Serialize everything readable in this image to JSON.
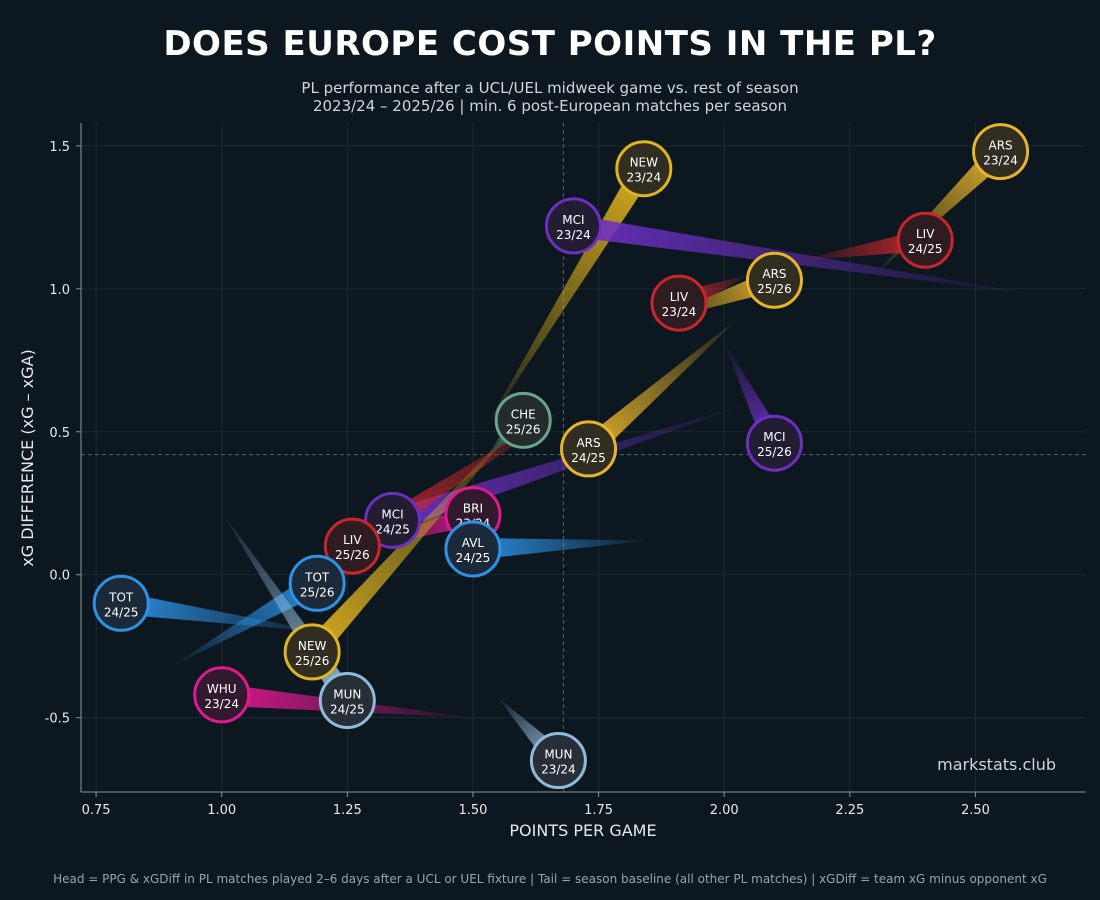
{
  "title": "DOES EUROPE COST POINTS IN THE PL?",
  "subtitle_line1": "PL performance after a UCL/UEL midweek game vs. rest of season",
  "subtitle_line2": "2023/24 – 2025/26 | min. 6 post-European matches per season",
  "footnote": "Head = PPG & xGDiff in PL matches played 2–6 days after a UCL or UEL fixture  |  Tail = season baseline (all other PL matches)  |  xGDiff = team xG minus opponent xG",
  "watermark": "markstats.club",
  "chart_data": {
    "type": "scatter",
    "xlabel": "POINTS PER GAME",
    "ylabel": "xG DIFFERENCE (xG – xGA)",
    "xlim": [
      0.72,
      2.72
    ],
    "ylim": [
      -0.76,
      1.58
    ],
    "xticks": [
      0.75,
      1.0,
      1.25,
      1.5,
      1.75,
      2.0,
      2.25,
      2.5
    ],
    "xtick_labels": [
      "0.75",
      "1.00",
      "1.25",
      "1.50",
      "1.75",
      "2.00",
      "2.25",
      "2.50"
    ],
    "yticks": [
      -0.5,
      0.0,
      0.5,
      1.0,
      1.5
    ],
    "ytick_labels": [
      "-0.5",
      "0.0",
      "0.5",
      "1.0",
      "1.5"
    ],
    "grid": true,
    "reference_lines": {
      "x": 1.68,
      "y": 0.42
    },
    "team_colors": {
      "ARS": "#e8b52a",
      "NEW": "#e0b41e",
      "MCI": "#6c2fc2",
      "LIV": "#c8262c",
      "TOT": "#2d92e6",
      "AVL": "#2d92e6",
      "CHE": "#6aa58a",
      "BRI": "#e0198f",
      "WHU": "#e0198f",
      "MUN": "#8fbbdb"
    },
    "points": [
      {
        "team": "ARS",
        "season": "23/24",
        "head": [
          2.55,
          1.48
        ],
        "tail": [
          2.3,
          1.05
        ]
      },
      {
        "team": "NEW",
        "season": "23/24",
        "head": [
          1.84,
          1.42
        ],
        "tail": [
          1.52,
          0.5
        ]
      },
      {
        "team": "MCI",
        "season": "23/24",
        "head": [
          1.7,
          1.22
        ],
        "tail": [
          2.62,
          0.98
        ]
      },
      {
        "team": "LIV",
        "season": "24/25",
        "head": [
          2.4,
          1.17
        ],
        "tail": [
          2.15,
          1.1
        ]
      },
      {
        "team": "ARS",
        "season": "25/26",
        "head": [
          2.1,
          1.03
        ],
        "tail": [
          1.85,
          0.88
        ]
      },
      {
        "team": "LIV",
        "season": "23/24",
        "head": [
          1.91,
          0.95
        ],
        "tail": [
          2.05,
          1.05
        ]
      },
      {
        "team": "CHE",
        "season": "25/26",
        "head": [
          1.6,
          0.54
        ],
        "tail": [
          1.53,
          0.42
        ]
      },
      {
        "team": "ARS",
        "season": "24/25",
        "head": [
          1.73,
          0.44
        ],
        "tail": [
          2.03,
          0.9
        ]
      },
      {
        "team": "MCI",
        "season": "25/26",
        "head": [
          2.1,
          0.46
        ],
        "tail": [
          2.0,
          0.81
        ]
      },
      {
        "team": "MCI",
        "season": "24/25",
        "head": [
          1.34,
          0.19
        ],
        "tail": [
          2.05,
          0.6
        ]
      },
      {
        "team": "BRI",
        "season": "23/24",
        "head": [
          1.5,
          0.21
        ],
        "tail": [
          1.28,
          0.09
        ]
      },
      {
        "team": "LIV",
        "season": "25/26",
        "head": [
          1.26,
          0.1
        ],
        "tail": [
          1.7,
          0.6
        ]
      },
      {
        "team": "AVL",
        "season": "24/25",
        "head": [
          1.5,
          0.09
        ],
        "tail": [
          1.85,
          0.12
        ]
      },
      {
        "team": "TOT",
        "season": "25/26",
        "head": [
          1.19,
          -0.03
        ],
        "tail": [
          0.9,
          -0.32
        ]
      },
      {
        "team": "TOT",
        "season": "24/25",
        "head": [
          0.8,
          -0.1
        ],
        "tail": [
          1.2,
          -0.2
        ]
      },
      {
        "team": "NEW",
        "season": "25/26",
        "head": [
          1.18,
          -0.27
        ],
        "tail": [
          1.6,
          0.55
        ]
      },
      {
        "team": "WHU",
        "season": "23/24",
        "head": [
          1.0,
          -0.42
        ],
        "tail": [
          1.5,
          -0.5
        ]
      },
      {
        "team": "MUN",
        "season": "24/25",
        "head": [
          1.25,
          -0.44
        ],
        "tail": [
          1.0,
          0.22
        ]
      },
      {
        "team": "MUN",
        "season": "23/24",
        "head": [
          1.67,
          -0.65
        ],
        "tail": [
          1.55,
          -0.43
        ]
      }
    ]
  }
}
